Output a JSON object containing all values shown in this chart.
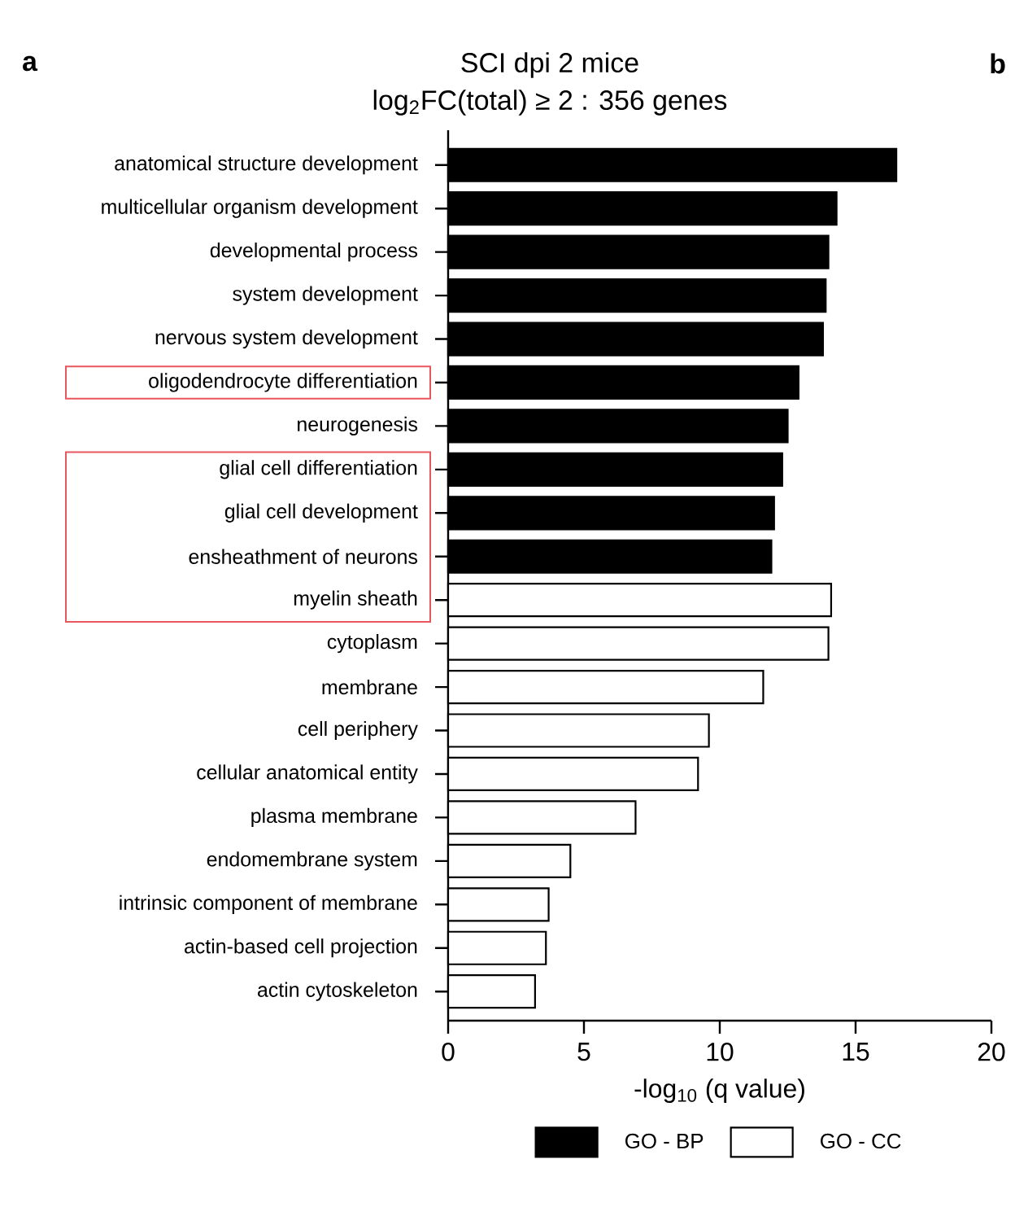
{
  "chart_data": {
    "type": "bar",
    "orientation": "horizontal",
    "title": "SCI dpi 2 mice",
    "subtitle": "log$_{2}$FC(total) ≥ 2 : 356 genes",
    "xlabel": "-log$_{10}$ (q value)",
    "categories": [
      "anatomical structure development",
      "multicellular organism development",
      "developmental process",
      "system development",
      "nervous system development",
      "oligodendrocyte differentiation",
      "neurogenesis",
      "glial cell differentiation",
      "glial cell development",
      "ensheathment of neurons",
      "myelin sheath",
      "cytoplasm",
      "membrane",
      "cell periphery",
      "cellular anatomical entity",
      "plasma membrane",
      "endomembrane system",
      "intrinsic component of membrane",
      "actin-based cell projection",
      "actin cytoskeleton"
    ],
    "series": [
      {
        "name": "GO - BP",
        "color": "#000000",
        "values": [
          16.5,
          14.3,
          14.0,
          13.9,
          13.8,
          12.9,
          12.5,
          12.3,
          12.0,
          11.9,
          null,
          null,
          null,
          null,
          null,
          null,
          null,
          null,
          null,
          null
        ]
      },
      {
        "name": "GO - CC",
        "color": "#ffffff",
        "values": [
          null,
          null,
          null,
          null,
          null,
          null,
          null,
          null,
          null,
          null,
          14.1,
          14.0,
          11.6,
          9.6,
          9.2,
          6.9,
          4.5,
          3.7,
          3.6,
          3.2
        ]
      }
    ],
    "xlim": [
      0,
      20
    ],
    "xticks": [
      0,
      5,
      10,
      15,
      20
    ],
    "legend": "bottom",
    "grid": false,
    "annotations": [
      "a",
      "b"
    ]
  }
}
